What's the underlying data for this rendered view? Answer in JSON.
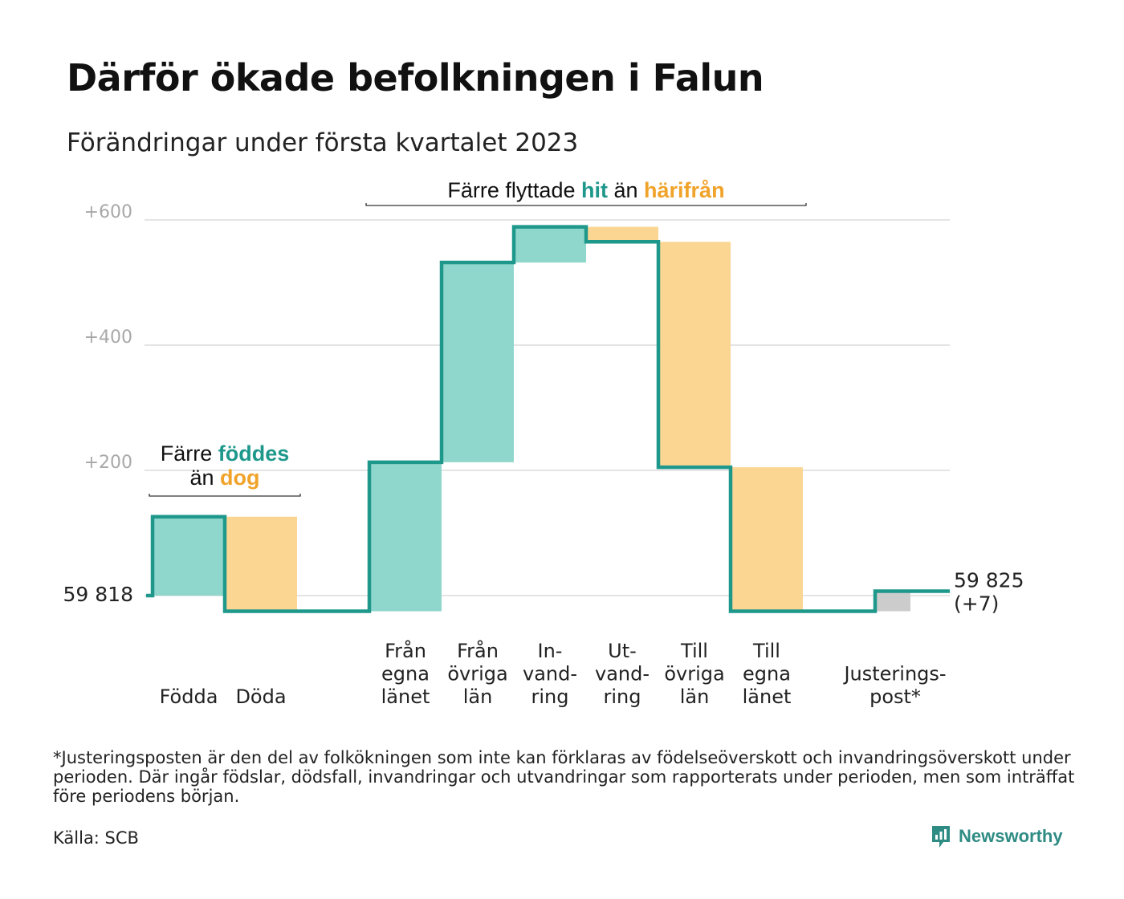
{
  "title": "Därför ökade befolkningen i Falun",
  "subtitle": "Förändringar under första kvartalet 2023",
  "colors": {
    "increase": "#8fd6cc",
    "decrease": "#fbd693",
    "adjustment": "#cccccc",
    "line": "#1f988c",
    "grid": "#e4e4e4",
    "teal_text": "#1f988c",
    "orange_text": "#f0a32a"
  },
  "chart_data": {
    "type": "waterfall",
    "y_ticks": [
      {
        "value": 200,
        "label": "+200"
      },
      {
        "value": 400,
        "label": "+400"
      },
      {
        "value": 600,
        "label": "+600"
      }
    ],
    "ylim": [
      -25,
      600
    ],
    "start": {
      "value": 0,
      "label": "59 818"
    },
    "end": {
      "value": 7,
      "label_lines": [
        "59 825",
        "(+7)"
      ]
    },
    "steps": [
      {
        "id": "fodda",
        "label_lines": [
          "Födda"
        ],
        "start": 0,
        "end": 126,
        "kind": "increase"
      },
      {
        "id": "doda",
        "label_lines": [
          "Döda"
        ],
        "start": 126,
        "end": -25,
        "kind": "decrease"
      },
      {
        "id": "gap1",
        "label_lines": [],
        "start": -25,
        "end": -25,
        "kind": "gap"
      },
      {
        "id": "fran-egna-lanet",
        "label_lines": [
          "Från",
          "egna",
          "länet"
        ],
        "start": -25,
        "end": 213,
        "kind": "increase"
      },
      {
        "id": "fran-ovriga-lan",
        "label_lines": [
          "Från",
          "övriga",
          "län"
        ],
        "start": 213,
        "end": 532,
        "kind": "increase"
      },
      {
        "id": "invandring",
        "label_lines": [
          "In-",
          "vand-",
          "ring"
        ],
        "start": 532,
        "end": 589,
        "kind": "increase"
      },
      {
        "id": "utvandring",
        "label_lines": [
          "Ut-",
          "vand-",
          "ring"
        ],
        "start": 589,
        "end": 565,
        "kind": "decrease"
      },
      {
        "id": "till-ovriga-lan",
        "label_lines": [
          "Till",
          "övriga",
          "län"
        ],
        "start": 565,
        "end": 205,
        "kind": "decrease"
      },
      {
        "id": "till-egna-lanet",
        "label_lines": [
          "Till",
          "egna",
          "länet"
        ],
        "start": 205,
        "end": -25,
        "kind": "decrease"
      },
      {
        "id": "gap2",
        "label_lines": [],
        "start": -25,
        "end": -25,
        "kind": "gap"
      },
      {
        "id": "justeringspost",
        "label_lines": [
          "Justerings-",
          "post*"
        ],
        "start": -25,
        "end": 7,
        "kind": "adjustment"
      }
    ],
    "annotations": [
      {
        "id": "births",
        "parts": [
          {
            "text": "Färre "
          },
          {
            "text": "föddes",
            "color": "teal"
          },
          {
            "text": "|"
          },
          {
            "text": "än "
          },
          {
            "text": "dog",
            "color": "orange"
          }
        ],
        "from_step": 0,
        "to_step": 1
      },
      {
        "id": "moves",
        "parts": [
          {
            "text": "Färre flyttade "
          },
          {
            "text": "hit",
            "color": "teal"
          },
          {
            "text": " än "
          },
          {
            "text": "härifrån",
            "color": "orange"
          }
        ],
        "from_step": 3,
        "to_step": 8
      }
    ]
  },
  "footnote": "*Justeringsposten är den del av folkökningen som inte kan förklaras av födelseöverskott och invandringsöverskott under perioden. Där ingår födslar, dödsfall, invandringar och utvandringar som rapporterats under perioden, men som inträffat före periodens början.",
  "source": "Källa: SCB",
  "brand": {
    "name": "Newsworthy",
    "icon": "newsworthy-logo-icon"
  }
}
